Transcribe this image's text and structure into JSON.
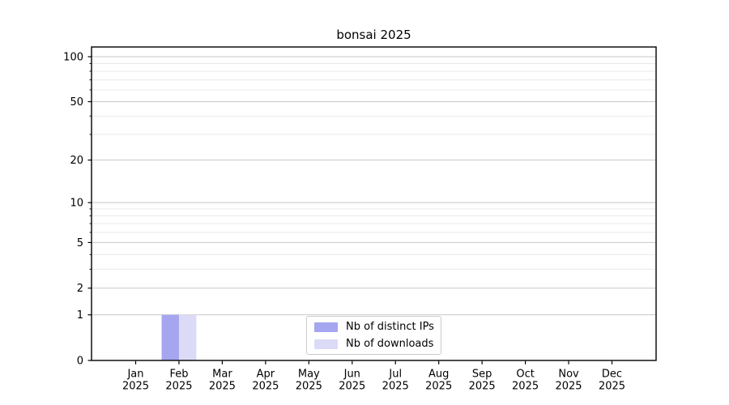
{
  "page": {
    "background": "#ffffff"
  },
  "chart_data": {
    "type": "bar",
    "title": "bonsai 2025",
    "x_ticks": [
      {
        "month": "Jan",
        "year": "2025"
      },
      {
        "month": "Feb",
        "year": "2025"
      },
      {
        "month": "Mar",
        "year": "2025"
      },
      {
        "month": "Apr",
        "year": "2025"
      },
      {
        "month": "May",
        "year": "2025"
      },
      {
        "month": "Jun",
        "year": "2025"
      },
      {
        "month": "Jul",
        "year": "2025"
      },
      {
        "month": "Aug",
        "year": "2025"
      },
      {
        "month": "Sep",
        "year": "2025"
      },
      {
        "month": "Oct",
        "year": "2025"
      },
      {
        "month": "Nov",
        "year": "2025"
      },
      {
        "month": "Dec",
        "year": "2025"
      }
    ],
    "series": [
      {
        "name": "Nb of distinct IPs",
        "color": "#a5a5f0",
        "values": [
          0,
          1,
          0,
          0,
          0,
          0,
          0,
          0,
          0,
          0,
          0,
          0
        ]
      },
      {
        "name": "Nb of downloads",
        "color": "#dbdbf8",
        "values": [
          0,
          1,
          0,
          0,
          0,
          0,
          0,
          0,
          0,
          0,
          0,
          0
        ]
      }
    ],
    "y_axis": {
      "scale": "log1p",
      "major_ticks": [
        0,
        1,
        2,
        5,
        10,
        20,
        50,
        100
      ],
      "minor_ticks": [
        3,
        4,
        6,
        7,
        8,
        9,
        30,
        40,
        60,
        70,
        80,
        90
      ],
      "range": [
        0,
        116
      ]
    },
    "legend": {
      "position": "lower center"
    },
    "grid": {
      "major_color": "#c8c8c8",
      "minor_color": "#e9e9e9",
      "orientation": "horizontal"
    },
    "axis_color": "#000000"
  }
}
